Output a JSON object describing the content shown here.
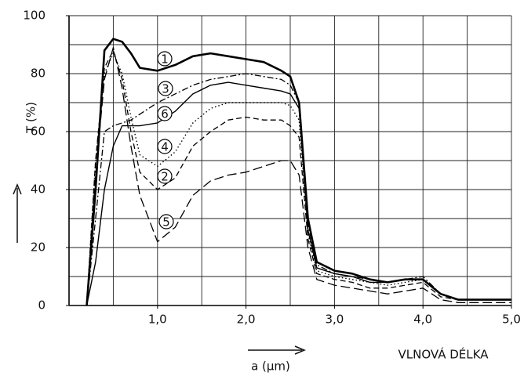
{
  "chart_data": {
    "type": "line",
    "ylabel": "T (%)",
    "xlabel": "a (µm)",
    "xlabel2": "VLNOVÁ DÉLKA",
    "xlim": [
      0,
      5
    ],
    "ylim": [
      0,
      100
    ],
    "xticks": [
      {
        "value": 1,
        "label": "1,0"
      },
      {
        "value": 2,
        "label": "2,0"
      },
      {
        "value": 3,
        "label": "3,0"
      },
      {
        "value": 4,
        "label": "4,0"
      },
      {
        "value": 5,
        "label": "5,0"
      }
    ],
    "yticks": [
      0,
      20,
      40,
      60,
      80,
      100
    ],
    "xgrid": [
      0.5,
      1,
      1.5,
      2,
      2.5,
      3,
      3.5,
      4,
      4.5,
      5
    ],
    "ygrid": [
      10,
      20,
      30,
      40,
      50,
      60,
      70,
      80,
      90,
      100
    ],
    "grid": true,
    "x": [
      0.2,
      0.3,
      0.4,
      0.5,
      0.6,
      0.7,
      0.8,
      1.0,
      1.2,
      1.4,
      1.6,
      1.8,
      2.0,
      2.2,
      2.4,
      2.5,
      2.6,
      2.7,
      2.8,
      3.0,
      3.2,
      3.4,
      3.6,
      3.8,
      4.0,
      4.2,
      4.4,
      5.0
    ],
    "series": [
      {
        "name": "1",
        "color": "#000000",
        "style": "solid",
        "linewidth": 2.6,
        "values": [
          0,
          40,
          88,
          92,
          91,
          87,
          82,
          81,
          83,
          86,
          87,
          86,
          85,
          84,
          81,
          79,
          70,
          30,
          15,
          12,
          11,
          9,
          8,
          9,
          9,
          4,
          2,
          2
        ]
      },
      {
        "name": "3",
        "color": "#000000",
        "style": "dashdot",
        "linewidth": 1.3,
        "values": [
          0,
          30,
          60,
          62,
          63,
          64,
          66,
          70,
          73,
          76,
          78,
          79,
          80,
          79,
          78,
          76,
          70,
          28,
          14,
          11,
          10,
          9,
          8,
          9,
          10,
          4,
          2,
          2
        ]
      },
      {
        "name": "6",
        "color": "#000000",
        "style": "solid",
        "linewidth": 1.4,
        "values": [
          0,
          15,
          40,
          55,
          62,
          62,
          62,
          63,
          67,
          73,
          76,
          77,
          76,
          75,
          74,
          73,
          68,
          26,
          13,
          11,
          10,
          8,
          8,
          9,
          9,
          4,
          2,
          2
        ]
      },
      {
        "name": "4",
        "color": "#000000",
        "style": "dotted",
        "linewidth": 1.4,
        "values": [
          0,
          50,
          80,
          87,
          80,
          65,
          52,
          48,
          53,
          63,
          68,
          70,
          70,
          70,
          70,
          69,
          64,
          25,
          12,
          10,
          9,
          8,
          7,
          8,
          9,
          4,
          2,
          2
        ]
      },
      {
        "name": "2",
        "color": "#000000",
        "style": "dashed",
        "linewidth": 1.3,
        "values": [
          0,
          50,
          82,
          88,
          78,
          60,
          46,
          40,
          44,
          55,
          60,
          64,
          65,
          64,
          64,
          62,
          58,
          23,
          11,
          9,
          8,
          6,
          6,
          7,
          8,
          3,
          2,
          2
        ]
      },
      {
        "name": "5",
        "color": "#000000",
        "style": "longdash",
        "linewidth": 1.3,
        "values": [
          0,
          45,
          78,
          89,
          75,
          55,
          38,
          22,
          27,
          38,
          43,
          45,
          46,
          48,
          50,
          50,
          45,
          20,
          9,
          7,
          6,
          5,
          4,
          5,
          6,
          2,
          1,
          1
        ]
      }
    ]
  }
}
